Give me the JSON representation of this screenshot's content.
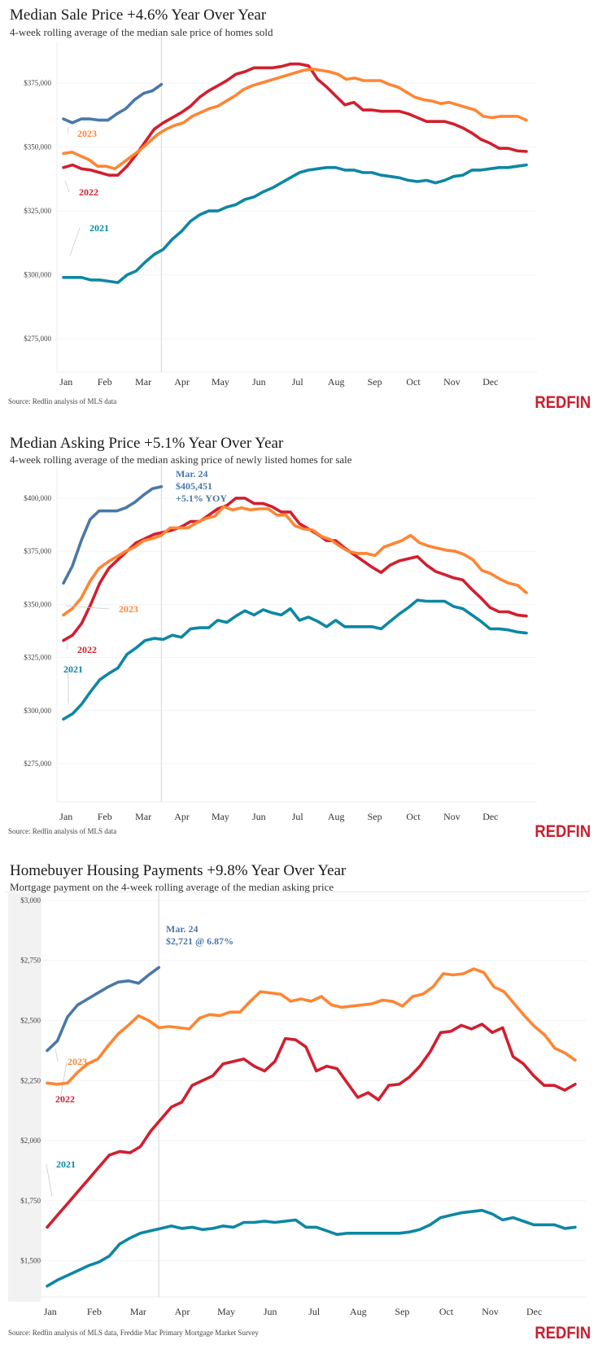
{
  "colors": {
    "y2021": "#0d87a3",
    "y2022": "#d11f2f",
    "y2023": "#ff8533",
    "y2024": "#4a78a8",
    "brand": "#c8202f"
  },
  "brand": {
    "logo_text": "Redfin"
  },
  "chart_data": [
    {
      "type": "line",
      "title": "Median Sale Price +4.6% Year Over Year",
      "subtitle": "4-week rolling average of the median sale price of homes sold",
      "source": "Source: Redfin analysis of MLS data",
      "xlabel": "",
      "ylabel": "",
      "x_tick_labels": [
        "Jan",
        "Feb",
        "Mar",
        "Apr",
        "May",
        "Jun",
        "Jul",
        "Aug",
        "Sep",
        "Oct",
        "Nov",
        "Dec"
      ],
      "y_tick_labels": [
        "$275,000",
        "$300,000",
        "$325,000",
        "$350,000",
        "$375,000"
      ],
      "y_ticks": [
        275000,
        300000,
        325000,
        350000,
        375000
      ],
      "ylim": [
        262000,
        390000
      ],
      "x_unit": "week of year",
      "xlim": [
        0,
        52
      ],
      "marker_line_week": 12,
      "grid": true,
      "legend": "inline labels at left",
      "series": [
        {
          "name": "2021",
          "color_key": "y2021",
          "label": "2021",
          "values": [
            299000,
            299000,
            299000,
            298000,
            298000,
            297500,
            297000,
            300000,
            301500,
            305000,
            308000,
            310000,
            314000,
            317000,
            321000,
            323500,
            325000,
            325000,
            326500,
            327500,
            329500,
            330500,
            332500,
            334000,
            336000,
            338000,
            340000,
            341000,
            341500,
            342000,
            342000,
            341000,
            341000,
            340000,
            340000,
            339000,
            338500,
            338000,
            337000,
            336500,
            337000,
            336000,
            337000,
            338500,
            339000,
            341000,
            341000,
            341500,
            342000,
            342000,
            342500,
            343000
          ]
        },
        {
          "name": "2022",
          "color_key": "y2022",
          "label": "2022",
          "values": [
            342000,
            343000,
            341500,
            341000,
            340000,
            339000,
            339000,
            342500,
            347000,
            352000,
            357000,
            359500,
            361500,
            363500,
            366000,
            369500,
            372000,
            374000,
            376000,
            378500,
            379500,
            381000,
            381000,
            381000,
            381500,
            382500,
            382500,
            381800,
            376500,
            373500,
            370000,
            366500,
            367500,
            364500,
            364500,
            364000,
            364000,
            364000,
            363000,
            361500,
            360000,
            360000,
            360000,
            359000,
            357500,
            355500,
            353000,
            351500,
            349500,
            349500,
            348500,
            348300
          ]
        },
        {
          "name": "2023",
          "color_key": "y2023",
          "label": "2023",
          "values": [
            347500,
            348000,
            346500,
            345000,
            342500,
            342500,
            341500,
            344000,
            346500,
            349000,
            352000,
            355000,
            357000,
            358500,
            359500,
            362000,
            363500,
            365000,
            366000,
            368000,
            370000,
            372500,
            374000,
            375000,
            376000,
            377000,
            378000,
            379000,
            380000,
            380500,
            380000,
            379500,
            378500,
            376500,
            377000,
            376000,
            376000,
            376000,
            374500,
            373500,
            371500,
            369500,
            368500,
            368000,
            367000,
            367500,
            366500,
            365500,
            364500,
            362000,
            361500,
            362000,
            362000,
            362000,
            360500
          ]
        },
        {
          "name": "2024",
          "color_key": "y2024",
          "label": "",
          "values": [
            361000,
            359500,
            361000,
            361000,
            360500,
            360500,
            363000,
            365000,
            368500,
            371000,
            372000,
            374500
          ]
        }
      ],
      "annotations": []
    },
    {
      "type": "line",
      "title": "Median Asking Price +5.1% Year Over Year",
      "subtitle": "4-week rolling average of the median asking price of newly listed homes for sale",
      "source": "Source: Redfin analysis of MLS data",
      "xlabel": "",
      "ylabel": "",
      "x_tick_labels": [
        "Jan",
        "Feb",
        "Mar",
        "Apr",
        "May",
        "Jun",
        "Jul",
        "Aug",
        "Sep",
        "Oct",
        "Nov",
        "Dec"
      ],
      "y_tick_labels": [
        "$275,000",
        "$300,000",
        "$325,000",
        "$350,000",
        "$375,000",
        "$400,000"
      ],
      "y_ticks": [
        275000,
        300000,
        325000,
        350000,
        375000,
        400000
      ],
      "ylim": [
        257000,
        413000
      ],
      "x_unit": "week of year",
      "xlim": [
        0,
        52
      ],
      "marker_line_week": 12,
      "grid": true,
      "legend": "inline labels at left",
      "series": [
        {
          "name": "2021",
          "color_key": "y2021",
          "label": "2021",
          "values": [
            296000,
            298500,
            303000,
            309000,
            314500,
            317500,
            320000,
            326500,
            329500,
            333000,
            334000,
            333500,
            335500,
            334500,
            338500,
            339000,
            339000,
            342500,
            341500,
            344500,
            347000,
            345000,
            347500,
            346000,
            345000,
            348000,
            342500,
            344000,
            342000,
            339500,
            342500,
            339500,
            339500,
            339500,
            339500,
            338500,
            342000,
            345500,
            348500,
            352000,
            351500,
            351500,
            351500,
            349000,
            348000,
            345000,
            342000,
            338500,
            338500,
            338000,
            337000,
            336500
          ]
        },
        {
          "name": "2022",
          "color_key": "y2022",
          "label": "2022",
          "values": [
            333000,
            335500,
            341000,
            350000,
            360000,
            367000,
            371000,
            375000,
            379000,
            381000,
            383000,
            384000,
            385000,
            386500,
            389000,
            389000,
            392000,
            395000,
            396500,
            400000,
            400000,
            397500,
            397500,
            396000,
            393500,
            393500,
            388000,
            385500,
            383000,
            380000,
            380000,
            376500,
            373500,
            370500,
            367500,
            365000,
            368500,
            370500,
            371500,
            372500,
            368500,
            365500,
            364000,
            362500,
            361500,
            357000,
            353000,
            348500,
            346500,
            346500,
            345000,
            344500
          ]
        },
        {
          "name": "2023",
          "color_key": "y2023",
          "label": "2023",
          "values": [
            345000,
            348000,
            353000,
            361000,
            367000,
            370000,
            372500,
            375000,
            377000,
            380000,
            381000,
            382500,
            386000,
            386000,
            386000,
            388500,
            390500,
            391500,
            396000,
            394500,
            395500,
            394500,
            395000,
            395000,
            392000,
            392000,
            387000,
            385500,
            385000,
            382000,
            380500,
            377500,
            375000,
            374000,
            374000,
            373000,
            377000,
            378500,
            380000,
            382500,
            379000,
            377500,
            376500,
            375500,
            375000,
            373500,
            371000,
            366000,
            364500,
            362000,
            360000,
            359000,
            355500
          ]
        },
        {
          "name": "2024",
          "color_key": "y2024",
          "label": "",
          "values": [
            360000,
            368000,
            380000,
            390000,
            394000,
            394000,
            394000,
            395500,
            398000,
            401500,
            404500,
            405451
          ]
        }
      ],
      "annotations": [
        {
          "lines": [
            "Mar. 24",
            "$405,451",
            "+5.1% YOY"
          ],
          "color_key": "y2024"
        }
      ]
    },
    {
      "type": "line",
      "title": "Homebuyer Housing Payments +9.8% Year Over Year",
      "subtitle": "Mortgage payment on the 4-week rolling average of the median asking price",
      "source": "Source: Redfin analysis of MLS data, Freddie Mac Primary Mortgage Market Survey",
      "xlabel": "",
      "ylabel": "",
      "x_tick_labels": [
        "Jan",
        "Feb",
        "Mar",
        "Apr",
        "May",
        "Jun",
        "Jul",
        "Aug",
        "Sep",
        "Oct",
        "Nov",
        "Dec"
      ],
      "y_tick_labels": [
        "$1,500",
        "$1,750",
        "$2,000",
        "$2,250",
        "$2,500",
        "$2,750",
        "$3,000"
      ],
      "y_ticks": [
        1500,
        1750,
        2000,
        2250,
        2500,
        2750,
        3000
      ],
      "ylim": [
        1350,
        3010
      ],
      "x_unit": "week of year",
      "xlim": [
        0,
        52
      ],
      "marker_line_week": 12,
      "grid": true,
      "legend": "inline labels at left",
      "series": [
        {
          "name": "2021",
          "color_key": "y2021",
          "label": "2021",
          "values": [
            1395,
            1420,
            1440,
            1460,
            1480,
            1495,
            1520,
            1570,
            1595,
            1615,
            1625,
            1635,
            1645,
            1635,
            1640,
            1630,
            1635,
            1645,
            1640,
            1660,
            1660,
            1665,
            1660,
            1665,
            1670,
            1640,
            1640,
            1625,
            1610,
            1615,
            1615,
            1615,
            1615,
            1615,
            1615,
            1620,
            1630,
            1650,
            1680,
            1690,
            1700,
            1705,
            1710,
            1695,
            1670,
            1680,
            1665,
            1650,
            1650,
            1650,
            1635,
            1640
          ]
        },
        {
          "name": "2022",
          "color_key": "y2022",
          "label": "2022",
          "values": [
            1640,
            1690,
            1740,
            1790,
            1840,
            1890,
            1940,
            1955,
            1950,
            1975,
            2040,
            2090,
            2140,
            2160,
            2230,
            2250,
            2270,
            2320,
            2330,
            2340,
            2310,
            2290,
            2330,
            2425,
            2420,
            2390,
            2290,
            2310,
            2300,
            2240,
            2180,
            2200,
            2170,
            2230,
            2235,
            2265,
            2310,
            2370,
            2450,
            2455,
            2480,
            2465,
            2485,
            2450,
            2470,
            2350,
            2320,
            2270,
            2230,
            2230,
            2210,
            2235
          ]
        },
        {
          "name": "2023",
          "color_key": "y2023",
          "label": "2023",
          "values": [
            2240,
            2235,
            2240,
            2285,
            2320,
            2340,
            2395,
            2445,
            2480,
            2520,
            2500,
            2470,
            2475,
            2470,
            2465,
            2510,
            2525,
            2520,
            2535,
            2535,
            2580,
            2620,
            2615,
            2610,
            2580,
            2590,
            2580,
            2600,
            2565,
            2555,
            2560,
            2565,
            2570,
            2585,
            2580,
            2560,
            2600,
            2610,
            2640,
            2695,
            2690,
            2695,
            2715,
            2700,
            2640,
            2620,
            2570,
            2520,
            2475,
            2440,
            2385,
            2365,
            2335
          ]
        },
        {
          "name": "2024",
          "color_key": "y2024",
          "label": "",
          "values": [
            2375,
            2415,
            2515,
            2565,
            2590,
            2615,
            2640,
            2660,
            2665,
            2655,
            2690,
            2721
          ]
        }
      ],
      "annotations": [
        {
          "lines": [
            "Mar. 24",
            "$2,721 @ 6.87%"
          ],
          "color_key": "y2024"
        }
      ]
    }
  ]
}
